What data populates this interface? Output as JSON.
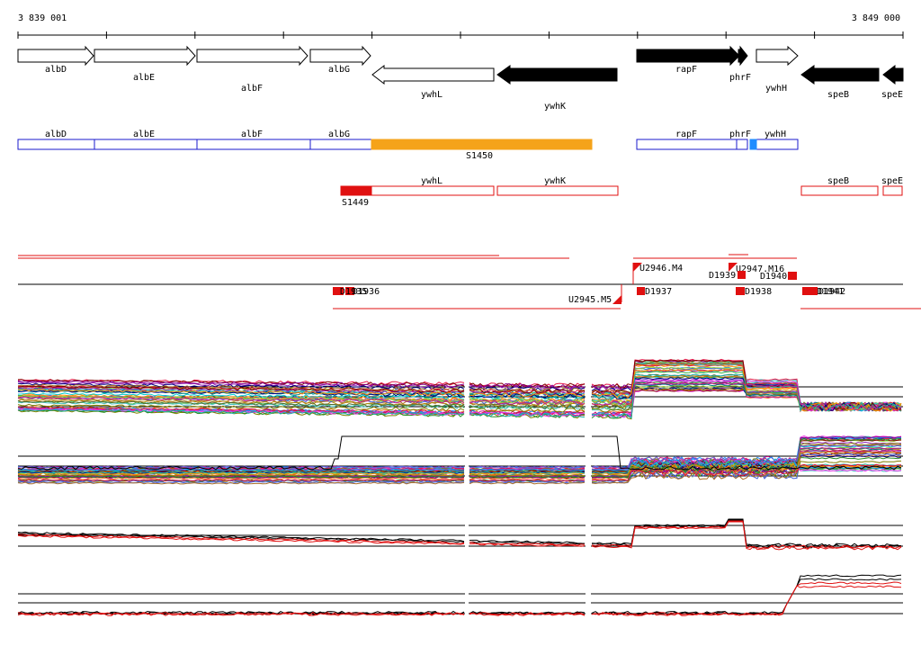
{
  "coords": {
    "start": "3 839 001",
    "end": "3 849 000"
  },
  "genes": [
    {
      "id": "albD",
      "label": "albD",
      "fill": "white",
      "dir": "right"
    },
    {
      "id": "albE",
      "label": "albE",
      "fill": "white",
      "dir": "right"
    },
    {
      "id": "albF",
      "label": "albF",
      "fill": "white",
      "dir": "right"
    },
    {
      "id": "albG",
      "label": "albG",
      "fill": "white",
      "dir": "right"
    },
    {
      "id": "ywhL",
      "label": "ywhL",
      "fill": "white",
      "dir": "left"
    },
    {
      "id": "ywhK",
      "label": "ywhK",
      "fill": "black",
      "dir": "left"
    },
    {
      "id": "rapF",
      "label": "rapF",
      "fill": "black",
      "dir": "right"
    },
    {
      "id": "phrF",
      "label": "phrF",
      "fill": "black",
      "dir": "right"
    },
    {
      "id": "ywhH",
      "label": "ywhH",
      "fill": "white",
      "dir": "right"
    },
    {
      "id": "speB",
      "label": "speB",
      "fill": "black",
      "dir": "left"
    },
    {
      "id": "speE",
      "label": "speE",
      "fill": "black",
      "dir": "left"
    }
  ],
  "blue_track": [
    {
      "label": "albD"
    },
    {
      "label": "albE"
    },
    {
      "label": "albF"
    },
    {
      "label": "albG"
    },
    {
      "label": "S1450"
    },
    {
      "label": "rapF"
    },
    {
      "label": "phrF"
    },
    {
      "label": "ywhH"
    }
  ],
  "red_track": [
    {
      "label": "S1449"
    },
    {
      "label": "ywhL"
    },
    {
      "label": "ywhK"
    },
    {
      "label": "speB"
    },
    {
      "label": "speE"
    }
  ],
  "features": [
    {
      "label": "U2946.M4"
    },
    {
      "label": "U2947.M16"
    },
    {
      "label": "D1939"
    },
    {
      "label": "D1940"
    },
    {
      "label": "U2945.M5"
    },
    {
      "label": "D1937"
    },
    {
      "label": "D1938"
    },
    {
      "label": "D1936"
    },
    {
      "label": "D1941"
    },
    {
      "label": "D1942"
    },
    {
      "label": "D1935"
    }
  ],
  "colors": {
    "blue": "#1a1acc",
    "orange": "#f5a31a",
    "red": "#e01010",
    "black": "#000000"
  }
}
